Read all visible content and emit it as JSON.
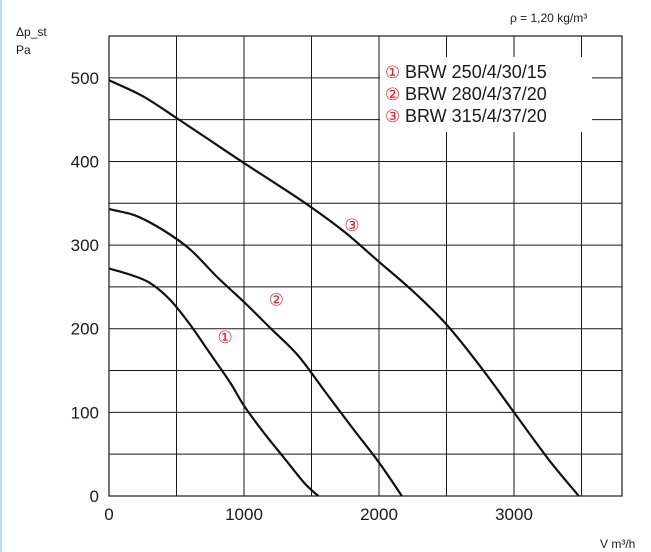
{
  "chart_data": {
    "type": "line",
    "title": "",
    "density_note": "ρ = 1,20 kg/m³",
    "ylabel_line1": "Δp_st",
    "ylabel_line2": "Pa",
    "xlabel": "V  m³/h",
    "xlim": [
      0,
      3800
    ],
    "ylim": [
      0,
      550
    ],
    "x_ticks": [
      "0",
      "1000",
      "2000",
      "3000"
    ],
    "y_ticks": [
      "0",
      "100",
      "200",
      "300",
      "400",
      "500"
    ],
    "x_tick_values": [
      0,
      1000,
      2000,
      3000
    ],
    "y_tick_values": [
      0,
      100,
      200,
      300,
      400,
      500
    ],
    "grid": true,
    "legend": {
      "placement": "top-right",
      "entries": [
        {
          "marker": "①",
          "label": "BRW 250/4/30/15"
        },
        {
          "marker": "②",
          "label": "BRW 280/4/37/20"
        },
        {
          "marker": "③",
          "label": "BRW 315/4/37/20"
        }
      ]
    },
    "series": [
      {
        "marker": "①",
        "label_at": [
          860,
          183
        ],
        "points": [
          [
            0,
            272
          ],
          [
            150,
            265
          ],
          [
            300,
            255
          ],
          [
            450,
            235
          ],
          [
            600,
            205
          ],
          [
            750,
            170
          ],
          [
            900,
            135
          ],
          [
            1000,
            108
          ],
          [
            1150,
            75
          ],
          [
            1300,
            45
          ],
          [
            1450,
            15
          ],
          [
            1550,
            0
          ]
        ]
      },
      {
        "marker": "②",
        "label_at": [
          1240,
          228
        ],
        "points": [
          [
            0,
            343
          ],
          [
            200,
            335
          ],
          [
            400,
            318
          ],
          [
            600,
            295
          ],
          [
            800,
            262
          ],
          [
            1000,
            232
          ],
          [
            1200,
            200
          ],
          [
            1400,
            168
          ],
          [
            1600,
            125
          ],
          [
            1800,
            82
          ],
          [
            2000,
            40
          ],
          [
            2170,
            0
          ]
        ]
      },
      {
        "marker": "③",
        "label_at": [
          1800,
          317
        ],
        "points": [
          [
            0,
            497
          ],
          [
            250,
            478
          ],
          [
            500,
            452
          ],
          [
            750,
            425
          ],
          [
            1000,
            398
          ],
          [
            1250,
            372
          ],
          [
            1500,
            345
          ],
          [
            1750,
            315
          ],
          [
            2000,
            280
          ],
          [
            2250,
            245
          ],
          [
            2500,
            205
          ],
          [
            2750,
            155
          ],
          [
            3000,
            100
          ],
          [
            3250,
            45
          ],
          [
            3480,
            0
          ]
        ]
      }
    ]
  }
}
